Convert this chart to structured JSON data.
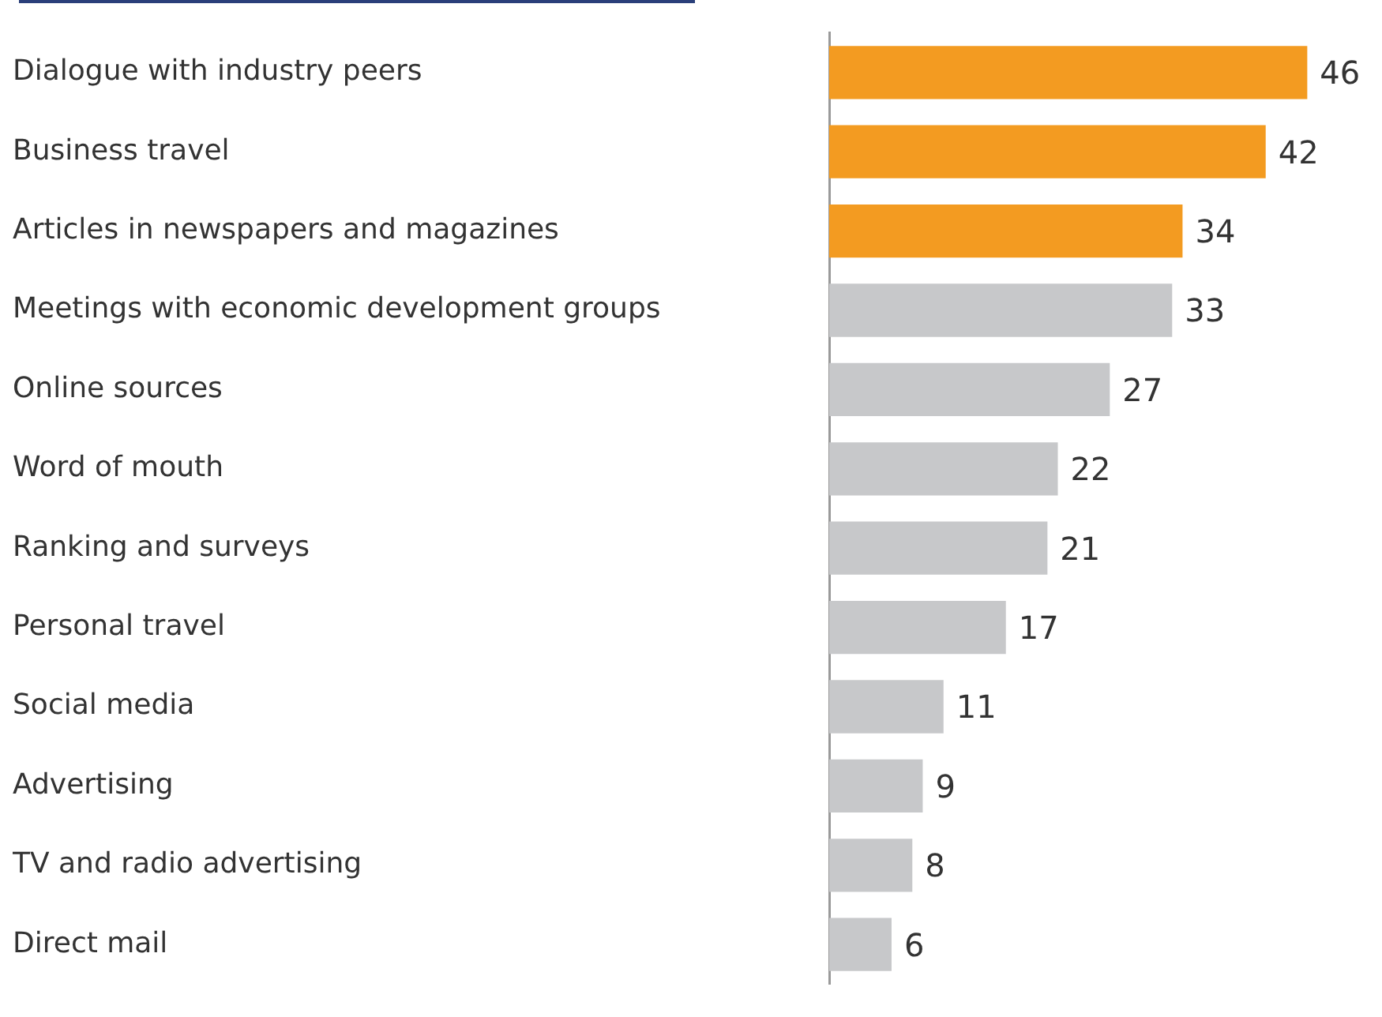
{
  "chart_data": {
    "type": "bar",
    "orientation": "horizontal",
    "categories": [
      "Dialogue with industry peers",
      "Business travel",
      "Articles in newspapers and magazines",
      "Meetings with economic development groups",
      "Online sources",
      "Word of mouth",
      "Ranking and surveys",
      "Personal travel",
      "Social media",
      "Advertising",
      "TV and radio advertising",
      "Direct mail"
    ],
    "values": [
      46,
      42,
      34,
      33,
      27,
      22,
      21,
      17,
      11,
      9,
      8,
      6
    ],
    "colors": [
      "#f39b21",
      "#f39b21",
      "#f39b21",
      "#c7c8ca",
      "#c7c8ca",
      "#c7c8ca",
      "#c7c8ca",
      "#c7c8ca",
      "#c7c8ca",
      "#c7c8ca",
      "#c7c8ca",
      "#c7c8ca"
    ],
    "data_labels": true,
    "grid": false,
    "legend": false
  }
}
